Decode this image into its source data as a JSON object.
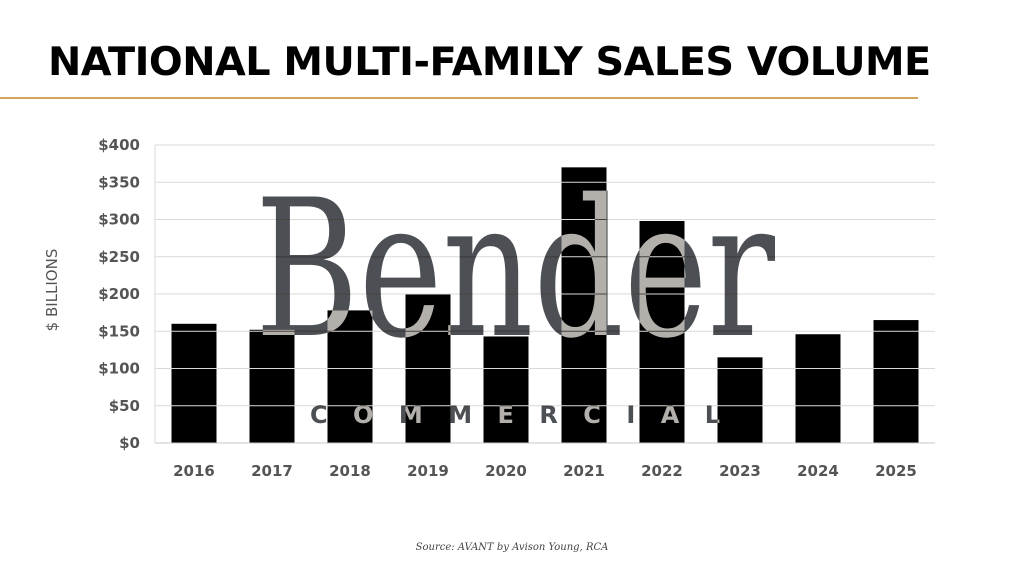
{
  "title": "NATIONAL MULTI-FAMILY SALES VOLUME",
  "source": "Source: AVANT by Avison Young, RCA",
  "watermark": {
    "name": "Bender",
    "sub": "COMMERCIAL"
  },
  "colors": {
    "bars": "#000000",
    "rule": "#d4a55a",
    "grid": "#d9d9d9"
  },
  "chart_data": {
    "type": "bar",
    "title": "",
    "xlabel": "",
    "ylabel": "$ BILLIONS",
    "categories": [
      "2016",
      "2017",
      "2018",
      "2019",
      "2020",
      "2021",
      "2022",
      "2023",
      "2024",
      "2025"
    ],
    "values": [
      160,
      152,
      178,
      200,
      143,
      370,
      298,
      115,
      146,
      165
    ],
    "ylim": [
      0,
      400
    ],
    "yticks": [
      "$0",
      "$50",
      "$100",
      "$150",
      "$200",
      "$250",
      "$300",
      "$350",
      "$400"
    ],
    "grid": true,
    "legend": "none"
  }
}
